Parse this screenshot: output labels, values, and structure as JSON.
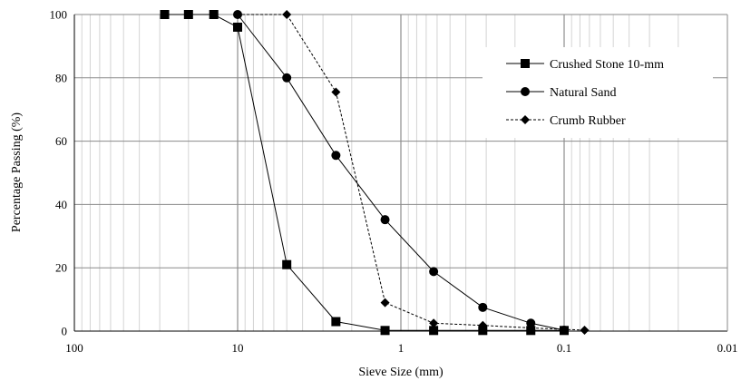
{
  "chart_data": {
    "type": "line",
    "xlabel": "Sieve Size (mm)",
    "ylabel": "Percentage Passing (%)",
    "x_scale": "log",
    "x_reversed": true,
    "xlim": [
      100,
      0.01
    ],
    "ylim": [
      0,
      100
    ],
    "x_ticks": [
      100,
      10,
      1,
      0.1,
      0.01
    ],
    "x_tick_labels": [
      "100",
      "10",
      "1",
      "0.1",
      "0.01"
    ],
    "y_ticks": [
      0,
      20,
      40,
      60,
      80,
      100
    ],
    "y_tick_labels": [
      "0",
      "20",
      "40",
      "60",
      "80",
      "100"
    ],
    "grid": "on (major and minor vertical, major horizontal)",
    "legend_position": "top-right",
    "series": [
      {
        "name": "Crushed Stone 10-mm",
        "marker": "square",
        "line": "solid",
        "color": "#000000",
        "x": [
          28,
          20,
          14,
          10,
          5,
          2.5,
          1.25,
          0.63,
          0.315,
          0.16,
          0.1
        ],
        "y": [
          100,
          100,
          100,
          96,
          21,
          3,
          0.2,
          0.2,
          0.2,
          0.2,
          0.2
        ]
      },
      {
        "name": "Natural Sand",
        "marker": "circle",
        "line": "solid",
        "color": "#000000",
        "x": [
          10,
          5,
          2.5,
          1.25,
          0.63,
          0.315,
          0.16,
          0.1
        ],
        "y": [
          100,
          80,
          55.5,
          35.2,
          18.8,
          7.5,
          2.5,
          0.3
        ]
      },
      {
        "name": "Crumb Rubber",
        "marker": "diamond",
        "line": "dashed",
        "color": "#000000",
        "x": [
          10,
          5,
          2.5,
          1.25,
          0.63,
          0.315,
          0.16,
          0.075
        ],
        "y": [
          100,
          100,
          75.5,
          9,
          2.5,
          1.8,
          1,
          0.3
        ]
      }
    ]
  }
}
